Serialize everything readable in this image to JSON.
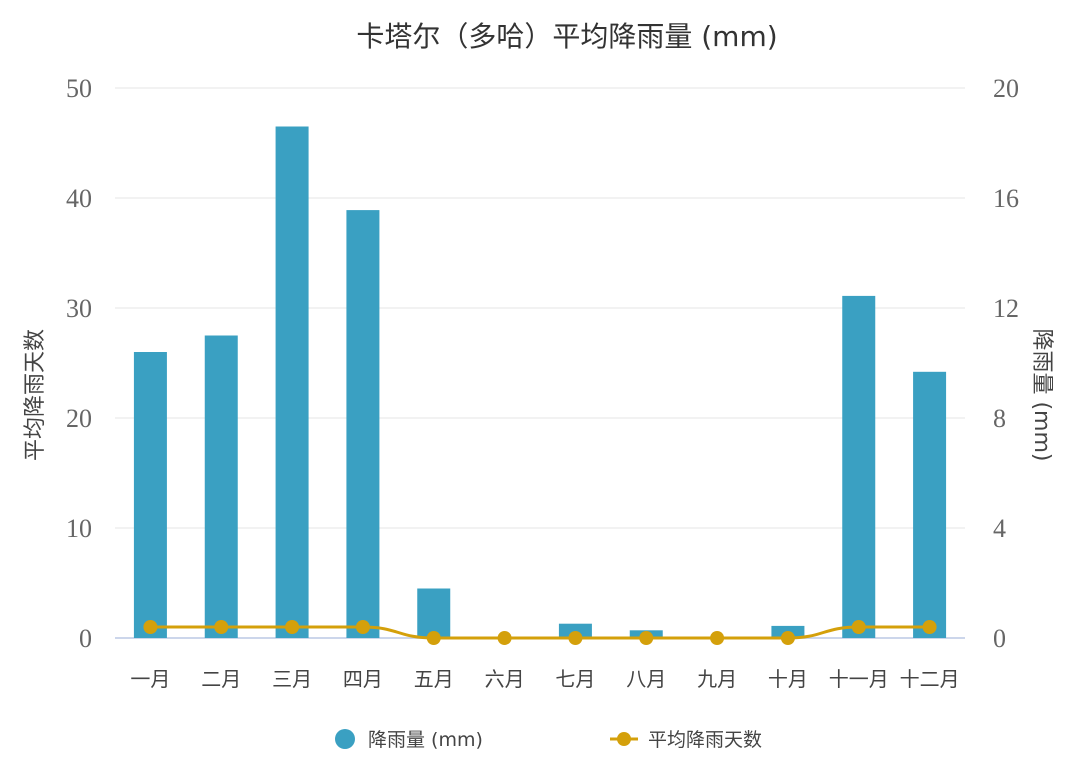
{
  "chart_data": {
    "type": "bar+line",
    "title": "卡塔尔（多哈）平均降雨量 (mm)",
    "categories": [
      "一月",
      "二月",
      "三月",
      "四月",
      "五月",
      "六月",
      "七月",
      "八月",
      "九月",
      "十月",
      "十一月",
      "十二月"
    ],
    "y_left": {
      "label": "平均降雨天数",
      "range": [
        0,
        50
      ],
      "ticks": [
        0,
        10,
        20,
        30,
        40,
        50
      ]
    },
    "y_right": {
      "label": "降雨量 (mm)",
      "range": [
        0,
        20
      ],
      "ticks": [
        0,
        4,
        8,
        12,
        16,
        20
      ]
    },
    "grid": true,
    "legend_position": "bottom",
    "series": [
      {
        "name": "降雨量 (mm)",
        "kind": "bar",
        "axis": "left",
        "color": "#3aa0c2",
        "values": [
          26.0,
          27.5,
          46.5,
          38.9,
          4.5,
          0,
          1.3,
          0.7,
          0,
          1.1,
          31.1,
          24.2
        ]
      },
      {
        "name": "平均降雨天数",
        "kind": "line",
        "axis": "left",
        "color": "#d4a00b",
        "values": [
          1,
          1,
          1,
          1,
          0,
          0,
          0,
          0,
          0,
          0,
          1,
          1
        ]
      }
    ]
  }
}
